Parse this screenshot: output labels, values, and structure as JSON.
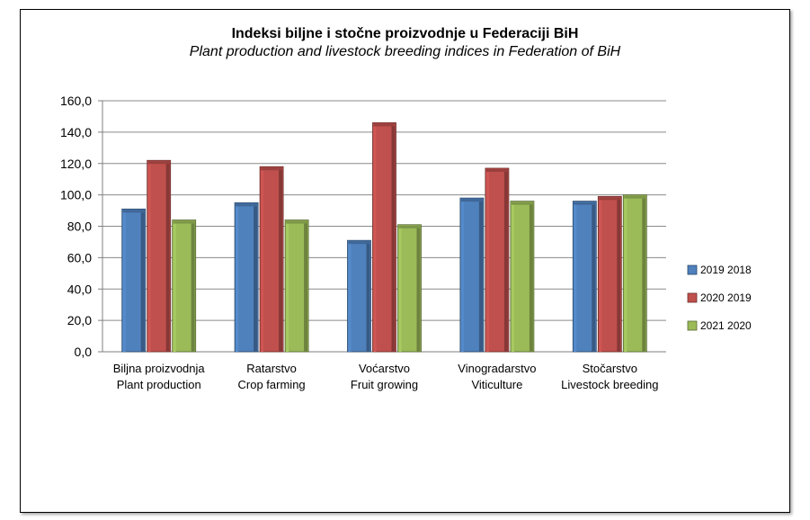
{
  "colors": {
    "s2019": "#4f81bd",
    "s2020": "#c0504d",
    "s2021": "#9bbb59"
  },
  "chart_data": {
    "type": "bar",
    "title": "Indeksi biljne i stočne proizvodnje u Federaciji BiH",
    "subtitle": "Plant production and livestock breeding indices in Federation of BiH",
    "categories": [
      [
        "Biljna proizvodnja",
        "Plant production"
      ],
      [
        "Ratarstvo",
        "Crop farming"
      ],
      [
        "Voćarstvo",
        "Fruit growing"
      ],
      [
        "Vinogradarstvo",
        "Viticulture"
      ],
      [
        "Stočarstvo",
        "Livestock breeding"
      ]
    ],
    "series": [
      {
        "name": "2019 2018",
        "color": "#4f81bd",
        "values": [
          91,
          95,
          71,
          98,
          96
        ]
      },
      {
        "name": "2020 2019",
        "color": "#c0504d",
        "values": [
          122,
          118,
          146,
          117,
          99
        ]
      },
      {
        "name": "2021 2020",
        "color": "#9bbb59",
        "values": [
          84,
          84,
          81,
          96,
          100
        ]
      }
    ],
    "ylim": [
      0,
      160
    ],
    "yticks": [
      "0,0",
      "20,0",
      "40,0",
      "60,0",
      "80,0",
      "100,0",
      "120,0",
      "140,0",
      "160,0"
    ],
    "grid": true,
    "legend": "right"
  }
}
